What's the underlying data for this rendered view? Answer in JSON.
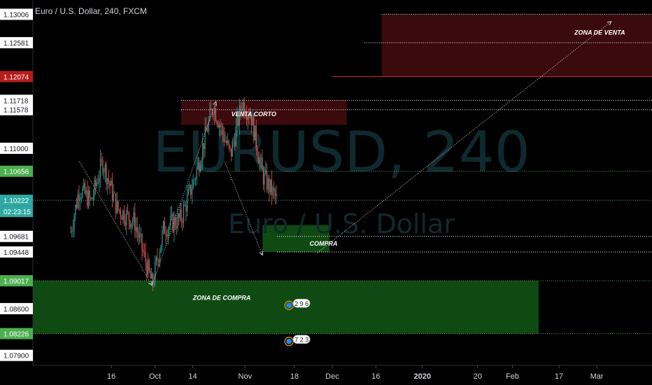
{
  "header": {
    "title": "Euro / U.S. Dollar, 240, FXCM"
  },
  "watermark": {
    "symbol": "EURUSD, 240",
    "description": "Euro / U.S. Dollar"
  },
  "colors": {
    "background": "#000000",
    "candle_up": "#26a69a",
    "candle_down": "#ef5350",
    "price_line": "#2ea9a3",
    "dotted_white": "#ffffff",
    "dotted_green": "#4caf50",
    "zone_green": "#0f4a13",
    "zone_red": "#3a0a0c",
    "label_green": "#4caf50",
    "label_red": "#b71c1c",
    "label_teal": "#2ea9a3"
  },
  "chart_data": {
    "type": "candlestick",
    "symbol": "EURUSD",
    "interval": "240",
    "source": "FXCM",
    "ylim": [
      1.0775,
      1.1322
    ],
    "y_ticks": [
      "1.13006",
      "1.12581",
      "1.12074",
      "1.11718",
      "1.11578",
      "1.11000",
      "1.10656",
      "1.10222",
      "1.09681",
      "1.09448",
      "1.09017",
      "1.08600",
      "1.08226",
      "1.07900"
    ],
    "last_price": "1.10222",
    "countdown": "02:23:15",
    "x_ticks": [
      "16",
      "Oct",
      "14",
      "Nov",
      "18",
      "Dec",
      "16",
      "2020",
      "20",
      "Feb",
      "17",
      "Mar"
    ],
    "price_path": [
      {
        "date": "Sep 2",
        "price": 1.0975
      },
      {
        "date": "Sep 5",
        "price": 1.104
      },
      {
        "date": "Sep 9",
        "price": 1.102
      },
      {
        "date": "Sep 13",
        "price": 1.108
      },
      {
        "date": "Sep 18",
        "price": 1.101
      },
      {
        "date": "Sep 24",
        "price": 1.099
      },
      {
        "date": "Sep 30",
        "price": 1.0895
      },
      {
        "date": "Oct 4",
        "price": 1.098
      },
      {
        "date": "Oct 10",
        "price": 1.0995
      },
      {
        "date": "Oct 15",
        "price": 1.106
      },
      {
        "date": "Oct 21",
        "price": 1.1165
      },
      {
        "date": "Oct 27",
        "price": 1.109
      },
      {
        "date": "Oct 31",
        "price": 1.1168
      },
      {
        "date": "Nov 3",
        "price": 1.115
      },
      {
        "date": "Nov 7",
        "price": 1.106
      },
      {
        "date": "Nov 12",
        "price": 1.1022
      }
    ],
    "zones": [
      {
        "label": "ZONA DE VENTA",
        "top": 1.13006,
        "bottom": 1.12074,
        "color": "red"
      },
      {
        "label": "VENTA CORTO",
        "top": 1.11718,
        "bottom": 1.1135,
        "color": "red"
      },
      {
        "label": "COMPRA",
        "top": 1.0985,
        "bottom": 1.09448,
        "color": "green"
      },
      {
        "label": "ZONA DE COMPRA",
        "top": 1.09017,
        "bottom": 1.08226,
        "color": "green"
      }
    ],
    "horizontal_levels": [
      {
        "price": 1.13006,
        "style": "white",
        "from": "Dec 18"
      },
      {
        "price": 1.12581,
        "style": "white",
        "from": "Dec 12"
      },
      {
        "price": 1.12074,
        "style": "red",
        "from": "Dec 1"
      },
      {
        "price": 1.11718,
        "style": "white",
        "from": "Oct 10"
      },
      {
        "price": 1.11578,
        "style": "white",
        "from": "Oct 10"
      },
      {
        "price": 1.10656,
        "style": "green",
        "from": "Oct 19"
      },
      {
        "price": 1.09681,
        "style": "white",
        "from": "Nov 12"
      },
      {
        "price": 1.09448,
        "style": "white",
        "from": "Nov 12"
      },
      {
        "price": 1.09017,
        "style": "green",
        "from": "Aug 20"
      },
      {
        "price": 1.08226,
        "style": "green",
        "from": "Aug 20"
      }
    ],
    "projection_arrows": [
      {
        "from": {
          "date": "Sep 5",
          "price": 1.108
        },
        "to": {
          "date": "Sep 30",
          "price": 1.0895
        }
      },
      {
        "from": {
          "date": "Sep 30",
          "price": 1.0895
        },
        "to": {
          "date": "Oct 22",
          "price": 1.117
        }
      },
      {
        "from": {
          "date": "Oct 25",
          "price": 1.108
        },
        "to": {
          "date": "Nov 7",
          "price": 1.094
        }
      },
      {
        "from": {
          "date": "Nov 26",
          "price": 1.0944
        },
        "to": {
          "date": "Mar 6",
          "price": 1.129
        }
      }
    ],
    "event_badges": [
      {
        "text": "2 9 6",
        "date": "Nov 19",
        "price": 1.0868
      },
      {
        "text": "7 2 3",
        "date": "Nov 19",
        "price": 1.0814
      }
    ]
  }
}
